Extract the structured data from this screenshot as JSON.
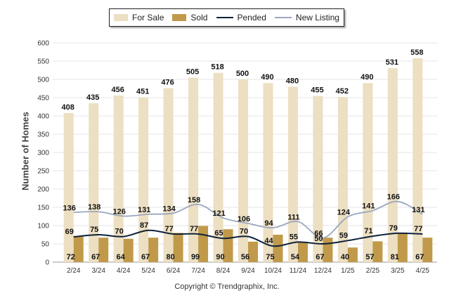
{
  "copyright": "Copyright © Trendgraphix, Inc.",
  "chart_data": {
    "type": "bar",
    "title": "",
    "xlabel": "",
    "ylabel": "Number of Homes",
    "ylim": [
      0,
      600
    ],
    "yticks": [
      0,
      50,
      100,
      150,
      200,
      250,
      300,
      350,
      400,
      450,
      500,
      550,
      600
    ],
    "grid": true,
    "legend_position": "top",
    "categories": [
      "2/24",
      "3/24",
      "4/24",
      "5/24",
      "6/24",
      "7/24",
      "8/24",
      "9/24",
      "10/24",
      "11/24",
      "12/24",
      "1/25",
      "2/25",
      "3/25",
      "4/25"
    ],
    "series": [
      {
        "name": "For Sale",
        "kind": "bar",
        "color": "#ecdfc2",
        "values": [
          408,
          435,
          456,
          451,
          476,
          505,
          518,
          500,
          490,
          480,
          455,
          452,
          490,
          531,
          558
        ]
      },
      {
        "name": "Sold",
        "kind": "bar",
        "color": "#c09a4a",
        "values": [
          72,
          67,
          64,
          67,
          80,
          99,
          90,
          56,
          75,
          54,
          67,
          40,
          57,
          81,
          67
        ]
      },
      {
        "name": "Pended",
        "kind": "line",
        "color": "#0e2238",
        "values": [
          69,
          75,
          70,
          87,
          77,
          77,
          65,
          70,
          44,
          55,
          50,
          59,
          71,
          79,
          77
        ]
      },
      {
        "name": "New Listing",
        "kind": "line",
        "color": "#9aa7be",
        "values": [
          136,
          138,
          126,
          131,
          134,
          158,
          121,
          106,
          94,
          111,
          66,
          124,
          141,
          166,
          131
        ]
      }
    ]
  }
}
